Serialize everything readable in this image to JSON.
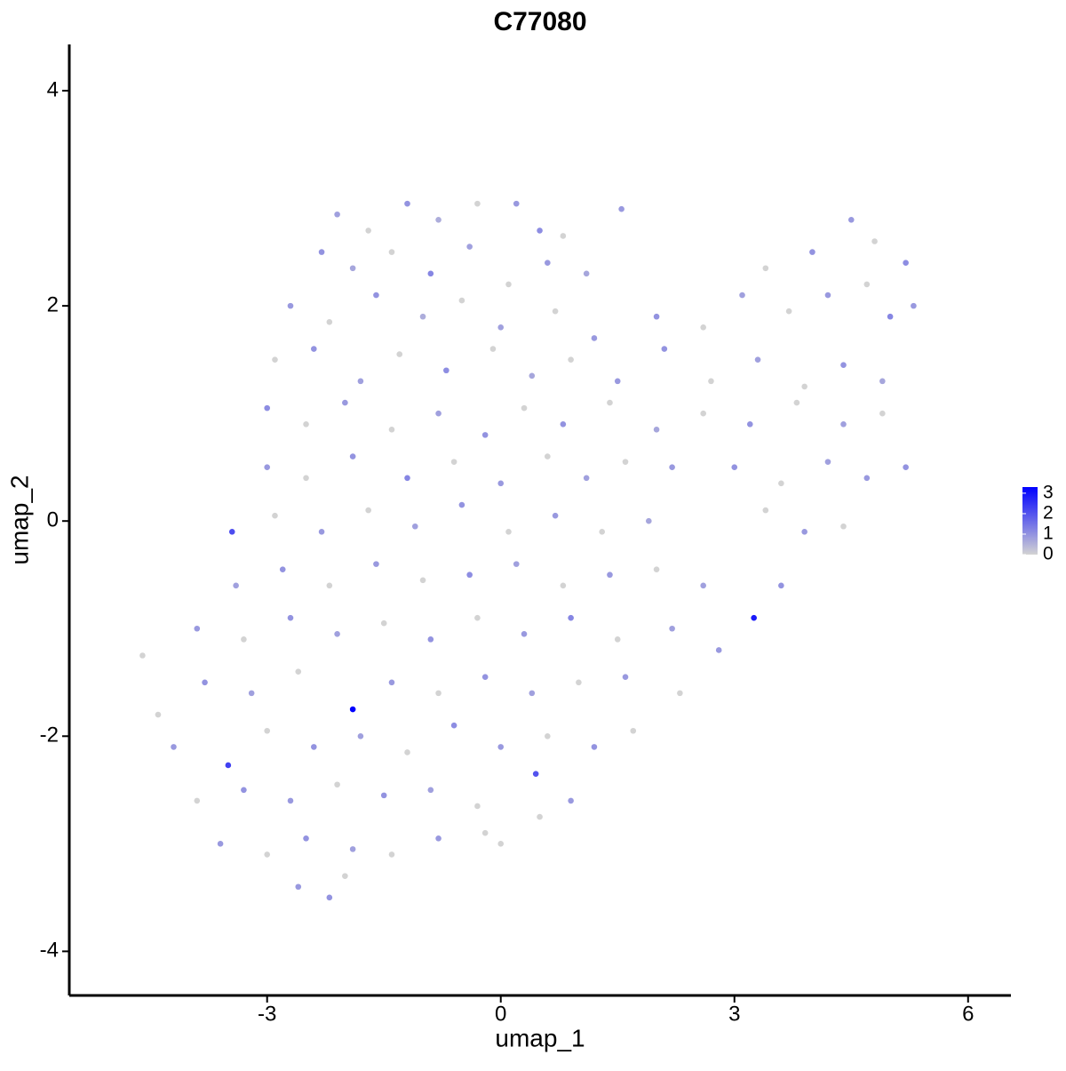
{
  "chart_data": {
    "type": "scatter",
    "title": "C77080",
    "x_label": "umap_1",
    "y_label": "umap_2",
    "xlim": [
      -5.54,
      6.55
    ],
    "ylim": [
      -4.41,
      4.43
    ],
    "xticks": [
      -3,
      0,
      3,
      6
    ],
    "yticks": [
      -4,
      -2,
      0,
      2,
      4
    ],
    "grid": false,
    "color_low": "#d3d3d3",
    "color_high": "#0000ff",
    "colorlim": [
      0,
      3.3
    ],
    "colorbar_ticks": [
      0,
      1,
      2,
      3
    ],
    "points": [
      {
        "x": -2.1,
        "y": 2.85,
        "value": 0.8
      },
      {
        "x": -1.7,
        "y": 2.7,
        "value": 0
      },
      {
        "x": -1.2,
        "y": 2.95,
        "value": 1.0
      },
      {
        "x": -0.8,
        "y": 2.8,
        "value": 0.6
      },
      {
        "x": -0.3,
        "y": 2.95,
        "value": 0
      },
      {
        "x": 0.2,
        "y": 2.95,
        "value": 0.9
      },
      {
        "x": 0.5,
        "y": 2.7,
        "value": 1.1
      },
      {
        "x": 0.8,
        "y": 2.65,
        "value": 0
      },
      {
        "x": 1.55,
        "y": 2.9,
        "value": 0.9
      },
      {
        "x": -2.3,
        "y": 2.5,
        "value": 1.0
      },
      {
        "x": -1.9,
        "y": 2.35,
        "value": 0.7
      },
      {
        "x": -1.4,
        "y": 2.5,
        "value": 0
      },
      {
        "x": -0.9,
        "y": 2.3,
        "value": 1.2
      },
      {
        "x": -0.4,
        "y": 2.55,
        "value": 0.8
      },
      {
        "x": 0.1,
        "y": 2.2,
        "value": 0
      },
      {
        "x": 0.6,
        "y": 2.4,
        "value": 0.9
      },
      {
        "x": 1.1,
        "y": 2.3,
        "value": 0.7
      },
      {
        "x": 3.4,
        "y": 2.35,
        "value": 0
      },
      {
        "x": 4.0,
        "y": 2.5,
        "value": 1.0
      },
      {
        "x": 4.5,
        "y": 2.8,
        "value": 0.9
      },
      {
        "x": 4.8,
        "y": 2.6,
        "value": 0
      },
      {
        "x": 5.2,
        "y": 2.4,
        "value": 1.1
      },
      {
        "x": -2.7,
        "y": 2.0,
        "value": 0.9
      },
      {
        "x": -2.2,
        "y": 1.85,
        "value": 0
      },
      {
        "x": -1.6,
        "y": 2.1,
        "value": 1.0
      },
      {
        "x": -1.0,
        "y": 1.9,
        "value": 0.6
      },
      {
        "x": -0.5,
        "y": 2.05,
        "value": 0
      },
      {
        "x": 0.0,
        "y": 1.8,
        "value": 0.8
      },
      {
        "x": 0.7,
        "y": 1.95,
        "value": 0
      },
      {
        "x": 1.2,
        "y": 1.7,
        "value": 0.9
      },
      {
        "x": 2.0,
        "y": 1.9,
        "value": 1.0
      },
      {
        "x": 2.6,
        "y": 1.8,
        "value": 0
      },
      {
        "x": 3.1,
        "y": 2.1,
        "value": 0.8
      },
      {
        "x": 3.7,
        "y": 1.95,
        "value": 0
      },
      {
        "x": 4.2,
        "y": 2.1,
        "value": 0.9
      },
      {
        "x": 4.7,
        "y": 2.2,
        "value": 0
      },
      {
        "x": 5.0,
        "y": 1.9,
        "value": 1.2
      },
      {
        "x": 5.3,
        "y": 2.0,
        "value": 0.9
      },
      {
        "x": -2.9,
        "y": 1.5,
        "value": 0
      },
      {
        "x": -2.4,
        "y": 1.6,
        "value": 1.0
      },
      {
        "x": -1.8,
        "y": 1.3,
        "value": 0.8
      },
      {
        "x": -1.3,
        "y": 1.55,
        "value": 0
      },
      {
        "x": -0.7,
        "y": 1.4,
        "value": 1.1
      },
      {
        "x": -0.1,
        "y": 1.6,
        "value": 0
      },
      {
        "x": 0.4,
        "y": 1.35,
        "value": 0.7
      },
      {
        "x": 0.9,
        "y": 1.5,
        "value": 0
      },
      {
        "x": 1.5,
        "y": 1.3,
        "value": 0.9
      },
      {
        "x": 2.1,
        "y": 1.6,
        "value": 1.0
      },
      {
        "x": 2.7,
        "y": 1.3,
        "value": 0
      },
      {
        "x": 3.3,
        "y": 1.5,
        "value": 0.8
      },
      {
        "x": 3.9,
        "y": 1.25,
        "value": 0
      },
      {
        "x": 4.4,
        "y": 1.45,
        "value": 1.0
      },
      {
        "x": 4.9,
        "y": 1.3,
        "value": 0.7
      },
      {
        "x": -3.0,
        "y": 1.05,
        "value": 1.1
      },
      {
        "x": -2.5,
        "y": 0.9,
        "value": 0
      },
      {
        "x": -2.0,
        "y": 1.1,
        "value": 0.9
      },
      {
        "x": -1.4,
        "y": 0.85,
        "value": 0
      },
      {
        "x": -0.8,
        "y": 1.0,
        "value": 0.8
      },
      {
        "x": -0.2,
        "y": 0.8,
        "value": 1.0
      },
      {
        "x": 0.3,
        "y": 1.05,
        "value": 0
      },
      {
        "x": 0.8,
        "y": 0.9,
        "value": 1.0
      },
      {
        "x": 1.4,
        "y": 1.1,
        "value": 0
      },
      {
        "x": 2.0,
        "y": 0.85,
        "value": 0.7
      },
      {
        "x": 2.6,
        "y": 1.0,
        "value": 0
      },
      {
        "x": 3.2,
        "y": 0.9,
        "value": 1.0
      },
      {
        "x": 3.8,
        "y": 1.1,
        "value": 0
      },
      {
        "x": 4.4,
        "y": 0.9,
        "value": 0.8
      },
      {
        "x": 4.9,
        "y": 1.0,
        "value": 0
      },
      {
        "x": 5.2,
        "y": 0.5,
        "value": 1.0
      },
      {
        "x": -3.0,
        "y": 0.5,
        "value": 0.9
      },
      {
        "x": -2.5,
        "y": 0.4,
        "value": 0
      },
      {
        "x": -1.9,
        "y": 0.6,
        "value": 1.0
      },
      {
        "x": -1.2,
        "y": 0.4,
        "value": 1.2
      },
      {
        "x": -0.6,
        "y": 0.55,
        "value": 0
      },
      {
        "x": 0.0,
        "y": 0.35,
        "value": 0.9
      },
      {
        "x": 0.6,
        "y": 0.6,
        "value": 0
      },
      {
        "x": 1.1,
        "y": 0.4,
        "value": 0.8
      },
      {
        "x": 1.6,
        "y": 0.55,
        "value": 0
      },
      {
        "x": 2.2,
        "y": 0.5,
        "value": 0.9
      },
      {
        "x": 3.0,
        "y": 0.5,
        "value": 1.0
      },
      {
        "x": 3.6,
        "y": 0.35,
        "value": 0
      },
      {
        "x": 4.2,
        "y": 0.55,
        "value": 0.8
      },
      {
        "x": 4.7,
        "y": 0.4,
        "value": 0.9
      },
      {
        "x": -3.45,
        "y": -0.1,
        "value": 2.1
      },
      {
        "x": -2.9,
        "y": 0.05,
        "value": 0
      },
      {
        "x": -2.3,
        "y": -0.1,
        "value": 0.9
      },
      {
        "x": -1.7,
        "y": 0.1,
        "value": 0
      },
      {
        "x": -1.1,
        "y": -0.05,
        "value": 0.8
      },
      {
        "x": -0.5,
        "y": 0.15,
        "value": 1.0
      },
      {
        "x": 0.1,
        "y": -0.1,
        "value": 0
      },
      {
        "x": 0.7,
        "y": 0.05,
        "value": 0.9
      },
      {
        "x": 1.3,
        "y": -0.1,
        "value": 0
      },
      {
        "x": 1.9,
        "y": 0.0,
        "value": 0.7
      },
      {
        "x": 3.4,
        "y": 0.1,
        "value": 0
      },
      {
        "x": 3.9,
        "y": -0.1,
        "value": 0.9
      },
      {
        "x": 4.4,
        "y": -0.05,
        "value": 0
      },
      {
        "x": -3.4,
        "y": -0.6,
        "value": 0.8
      },
      {
        "x": -2.8,
        "y": -0.45,
        "value": 1.0
      },
      {
        "x": -2.2,
        "y": -0.6,
        "value": 0
      },
      {
        "x": -1.6,
        "y": -0.4,
        "value": 0.9
      },
      {
        "x": -1.0,
        "y": -0.55,
        "value": 0
      },
      {
        "x": -0.4,
        "y": -0.5,
        "value": 1.1
      },
      {
        "x": 0.2,
        "y": -0.4,
        "value": 0.8
      },
      {
        "x": 0.8,
        "y": -0.6,
        "value": 0
      },
      {
        "x": 1.4,
        "y": -0.5,
        "value": 0.9
      },
      {
        "x": 2.0,
        "y": -0.45,
        "value": 0
      },
      {
        "x": 2.6,
        "y": -0.6,
        "value": 0.8
      },
      {
        "x": 3.6,
        "y": -0.6,
        "value": 1.0
      },
      {
        "x": -4.6,
        "y": -1.25,
        "value": 0
      },
      {
        "x": -3.9,
        "y": -1.0,
        "value": 0.9
      },
      {
        "x": -3.3,
        "y": -1.1,
        "value": 0
      },
      {
        "x": -2.7,
        "y": -0.9,
        "value": 1.0
      },
      {
        "x": -2.1,
        "y": -1.05,
        "value": 0.8
      },
      {
        "x": -1.5,
        "y": -0.95,
        "value": 0
      },
      {
        "x": -0.9,
        "y": -1.1,
        "value": 1.0
      },
      {
        "x": -0.3,
        "y": -0.9,
        "value": 0
      },
      {
        "x": 0.3,
        "y": -1.05,
        "value": 0.9
      },
      {
        "x": 0.9,
        "y": -0.9,
        "value": 1.2
      },
      {
        "x": 1.5,
        "y": -1.1,
        "value": 0
      },
      {
        "x": 2.2,
        "y": -1.0,
        "value": 0.8
      },
      {
        "x": 3.25,
        "y": -0.9,
        "value": 2.9
      },
      {
        "x": 2.8,
        "y": -1.2,
        "value": 0.9
      },
      {
        "x": -4.4,
        "y": -1.8,
        "value": 0
      },
      {
        "x": -3.8,
        "y": -1.5,
        "value": 1.0
      },
      {
        "x": -3.2,
        "y": -1.6,
        "value": 0.8
      },
      {
        "x": -2.6,
        "y": -1.4,
        "value": 0
      },
      {
        "x": -1.9,
        "y": -1.75,
        "value": 3.3
      },
      {
        "x": -1.4,
        "y": -1.5,
        "value": 0.9
      },
      {
        "x": -0.8,
        "y": -1.6,
        "value": 0
      },
      {
        "x": -0.2,
        "y": -1.45,
        "value": 1.0
      },
      {
        "x": 0.4,
        "y": -1.6,
        "value": 0.8
      },
      {
        "x": 1.0,
        "y": -1.5,
        "value": 0
      },
      {
        "x": 1.6,
        "y": -1.45,
        "value": 0.9
      },
      {
        "x": 2.3,
        "y": -1.6,
        "value": 0
      },
      {
        "x": -4.2,
        "y": -2.1,
        "value": 0.9
      },
      {
        "x": -3.5,
        "y": -2.27,
        "value": 2.3
      },
      {
        "x": -3.0,
        "y": -1.95,
        "value": 0
      },
      {
        "x": -2.4,
        "y": -2.1,
        "value": 1.0
      },
      {
        "x": -1.8,
        "y": -2.0,
        "value": 0.8
      },
      {
        "x": -1.2,
        "y": -2.15,
        "value": 0
      },
      {
        "x": -0.6,
        "y": -1.9,
        "value": 1.1
      },
      {
        "x": 0.0,
        "y": -2.1,
        "value": 0.9
      },
      {
        "x": 0.6,
        "y": -2.0,
        "value": 0
      },
      {
        "x": 1.2,
        "y": -2.1,
        "value": 1.0
      },
      {
        "x": 1.7,
        "y": -1.95,
        "value": 0
      },
      {
        "x": -3.9,
        "y": -2.6,
        "value": 0
      },
      {
        "x": -3.3,
        "y": -2.5,
        "value": 1.0
      },
      {
        "x": -2.7,
        "y": -2.6,
        "value": 0.9
      },
      {
        "x": -2.1,
        "y": -2.45,
        "value": 0
      },
      {
        "x": -1.5,
        "y": -2.55,
        "value": 1.0
      },
      {
        "x": -0.9,
        "y": -2.5,
        "value": 0.8
      },
      {
        "x": -0.3,
        "y": -2.65,
        "value": 0
      },
      {
        "x": 0.45,
        "y": -2.35,
        "value": 2.0
      },
      {
        "x": 0.9,
        "y": -2.6,
        "value": 0.9
      },
      {
        "x": 0.5,
        "y": -2.75,
        "value": 0
      },
      {
        "x": -3.6,
        "y": -3.0,
        "value": 0.9
      },
      {
        "x": -3.0,
        "y": -3.1,
        "value": 0
      },
      {
        "x": -2.5,
        "y": -2.95,
        "value": 1.0
      },
      {
        "x": -1.9,
        "y": -3.05,
        "value": 0.8
      },
      {
        "x": -1.4,
        "y": -3.1,
        "value": 0
      },
      {
        "x": -0.8,
        "y": -2.95,
        "value": 0.9
      },
      {
        "x": -0.2,
        "y": -2.9,
        "value": 0
      },
      {
        "x": 0.0,
        "y": -3.0,
        "value": 0
      },
      {
        "x": -2.6,
        "y": -3.4,
        "value": 0.9
      },
      {
        "x": -2.2,
        "y": -3.5,
        "value": 1.0
      },
      {
        "x": -2.0,
        "y": -3.3,
        "value": 0
      }
    ]
  }
}
